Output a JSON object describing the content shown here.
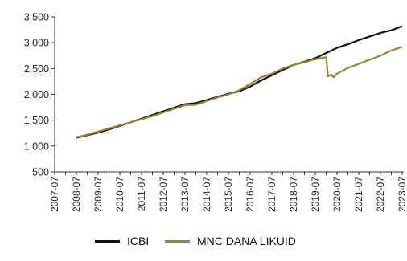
{
  "chart_data": {
    "type": "line",
    "title": "",
    "xlabel": "",
    "ylabel": "",
    "ylim": [
      500,
      3500
    ],
    "yticks": [
      500,
      1000,
      1500,
      2000,
      2500,
      3000,
      3500
    ],
    "ytick_labels": [
      "500",
      "1,000",
      "1,500",
      "2,000",
      "2,500",
      "3,000",
      "3,500"
    ],
    "xticks": [
      "2007-07",
      "2008-07",
      "2009-07",
      "2010-07",
      "2011-07",
      "2012-07",
      "2013-07",
      "2014-07",
      "2015-07",
      "2016-07",
      "2017-07",
      "2018-07",
      "2019-07",
      "2020-07",
      "2021-07",
      "2022-07",
      "2023-07"
    ],
    "grid": false,
    "legend_position": "bottom",
    "series": [
      {
        "name": "ICBI",
        "color": "#111111",
        "points": [
          [
            "2008-07",
            1160
          ],
          [
            "2009-01",
            1210
          ],
          [
            "2009-07",
            1260
          ],
          [
            "2010-01",
            1320
          ],
          [
            "2010-07",
            1390
          ],
          [
            "2011-01",
            1460
          ],
          [
            "2011-07",
            1530
          ],
          [
            "2012-01",
            1600
          ],
          [
            "2012-07",
            1670
          ],
          [
            "2013-01",
            1740
          ],
          [
            "2013-07",
            1810
          ],
          [
            "2014-01",
            1830
          ],
          [
            "2014-07",
            1890
          ],
          [
            "2015-01",
            1950
          ],
          [
            "2015-07",
            2010
          ],
          [
            "2016-01",
            2060
          ],
          [
            "2016-07",
            2150
          ],
          [
            "2017-01",
            2270
          ],
          [
            "2017-07",
            2370
          ],
          [
            "2018-01",
            2470
          ],
          [
            "2018-07",
            2570
          ],
          [
            "2019-01",
            2630
          ],
          [
            "2019-07",
            2700
          ],
          [
            "2020-01",
            2800
          ],
          [
            "2020-07",
            2900
          ],
          [
            "2021-01",
            2970
          ],
          [
            "2021-07",
            3050
          ],
          [
            "2022-01",
            3120
          ],
          [
            "2022-07",
            3190
          ],
          [
            "2023-01",
            3240
          ],
          [
            "2023-07",
            3320
          ]
        ]
      },
      {
        "name": "MNC DANA LIKUID",
        "color": "#9C8236",
        "points": [
          [
            "2008-07",
            1170
          ],
          [
            "2009-01",
            1220
          ],
          [
            "2009-07",
            1280
          ],
          [
            "2010-01",
            1340
          ],
          [
            "2010-07",
            1400
          ],
          [
            "2011-01",
            1460
          ],
          [
            "2011-07",
            1520
          ],
          [
            "2012-01",
            1580
          ],
          [
            "2012-07",
            1650
          ],
          [
            "2013-01",
            1720
          ],
          [
            "2013-07",
            1790
          ],
          [
            "2014-01",
            1800
          ],
          [
            "2014-07",
            1870
          ],
          [
            "2015-01",
            1940
          ],
          [
            "2015-07",
            2000
          ],
          [
            "2016-01",
            2080
          ],
          [
            "2016-07",
            2200
          ],
          [
            "2017-01",
            2330
          ],
          [
            "2017-07",
            2400
          ],
          [
            "2018-01",
            2500
          ],
          [
            "2018-07",
            2570
          ],
          [
            "2019-01",
            2620
          ],
          [
            "2019-07",
            2680
          ],
          [
            "2020-01",
            2720
          ],
          [
            "2020-02",
            2350
          ],
          [
            "2020-04",
            2380
          ],
          [
            "2020-05",
            2330
          ],
          [
            "2020-07",
            2400
          ],
          [
            "2021-01",
            2510
          ],
          [
            "2021-07",
            2590
          ],
          [
            "2022-01",
            2670
          ],
          [
            "2022-07",
            2750
          ],
          [
            "2023-01",
            2850
          ],
          [
            "2023-07",
            2920
          ]
        ]
      }
    ]
  }
}
